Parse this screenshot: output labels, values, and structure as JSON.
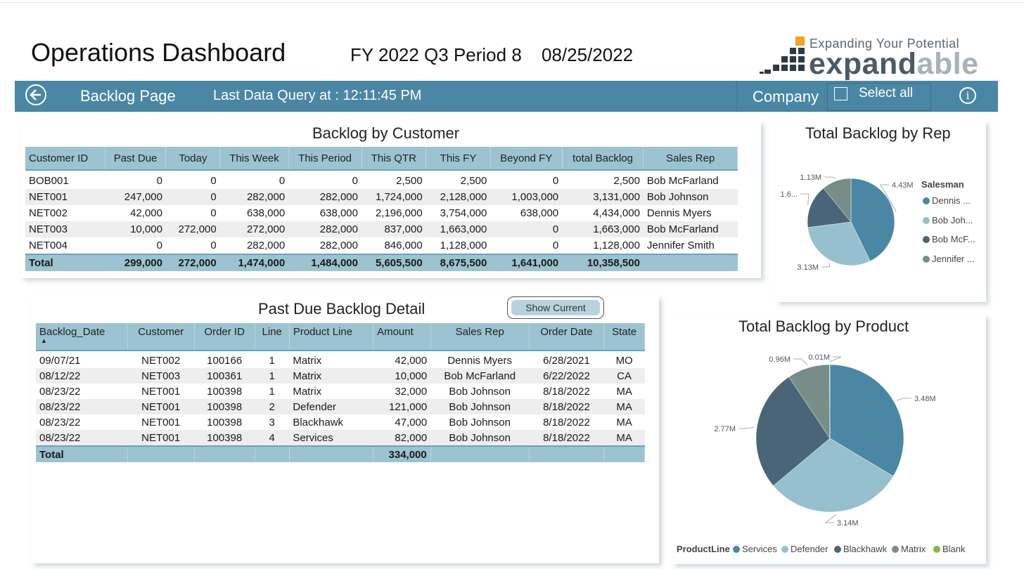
{
  "header": {
    "title": "Operations Dashboard",
    "period": "FY 2022 Q3 Period 8",
    "date": "08/25/2022",
    "logo_tagline": "Expanding Your Potential",
    "logo_word_a": "expand",
    "logo_word_b": "able"
  },
  "navbar": {
    "page_title": "Backlog Page",
    "query_text": "Last Data Query at : 12:11:45 PM",
    "company_label": "Company",
    "select_all": "Select all"
  },
  "customer_table": {
    "title": "Backlog by Customer",
    "columns": [
      "Customer ID",
      "Past Due",
      "Today",
      "This Week",
      "This Period",
      "This QTR",
      "This FY",
      "Beyond FY",
      "total Backlog",
      "Sales Rep"
    ],
    "rows": [
      [
        "BOB001",
        "0",
        "0",
        "0",
        "0",
        "2,500",
        "2,500",
        "0",
        "2,500",
        "Bob McFarland"
      ],
      [
        "NET001",
        "247,000",
        "0",
        "282,000",
        "282,000",
        "1,724,000",
        "2,128,000",
        "1,003,000",
        "3,131,000",
        "Bob Johnson"
      ],
      [
        "NET002",
        "42,000",
        "0",
        "638,000",
        "638,000",
        "2,196,000",
        "3,754,000",
        "638,000",
        "4,434,000",
        "Dennis Myers"
      ],
      [
        "NET003",
        "10,000",
        "272,000",
        "272,000",
        "282,000",
        "837,000",
        "1,663,000",
        "0",
        "1,663,000",
        "Bob McFarland"
      ],
      [
        "NET004",
        "0",
        "0",
        "282,000",
        "282,000",
        "846,000",
        "1,128,000",
        "0",
        "1,128,000",
        "Jennifer Smith"
      ]
    ],
    "total": [
      "Total",
      "299,000",
      "272,000",
      "1,474,000",
      "1,484,000",
      "5,605,500",
      "8,675,500",
      "1,641,000",
      "10,358,500",
      ""
    ]
  },
  "detail_table": {
    "title": "Past Due Backlog Detail",
    "show_current": "Show Current",
    "sort_arrow": "▲",
    "columns": [
      "Backlog_Date",
      "Customer",
      "Order ID",
      "Line",
      "Product Line",
      "Amount",
      "Sales Rep",
      "Order Date",
      "State"
    ],
    "rows": [
      [
        "09/07/21",
        "NET002",
        "100166",
        "1",
        "Matrix",
        "42,000",
        "Dennis Myers",
        "6/28/2021",
        "MO"
      ],
      [
        "08/12/22",
        "NET003",
        "100361",
        "1",
        "Matrix",
        "10,000",
        "Bob McFarland",
        "6/22/2022",
        "CA"
      ],
      [
        "08/23/22",
        "NET001",
        "100398",
        "1",
        "Matrix",
        "32,000",
        "Bob Johnson",
        "8/18/2022",
        "MA"
      ],
      [
        "08/23/22",
        "NET001",
        "100398",
        "2",
        "Defender",
        "121,000",
        "Bob Johnson",
        "8/18/2022",
        "MA"
      ],
      [
        "08/23/22",
        "NET001",
        "100398",
        "3",
        "Blackhawk",
        "47,000",
        "Bob Johnson",
        "8/18/2022",
        "MA"
      ],
      [
        "08/23/22",
        "NET001",
        "100398",
        "4",
        "Services",
        "82,000",
        "Bob Johnson",
        "8/18/2022",
        "MA"
      ]
    ],
    "total": [
      "Total",
      "",
      "",
      "",
      "",
      "334,000",
      "",
      "",
      ""
    ]
  },
  "colors": {
    "nav": "#4a87a5",
    "header_row": "#9cc3d1",
    "c1": "#4a87a5",
    "c2": "#97c0ce",
    "c3": "#4a6577",
    "c4": "#768e87",
    "c5": "#7fba4a"
  },
  "chart_data": [
    {
      "type": "pie",
      "title": "Total Backlog by Rep",
      "legend_title": "Salesman",
      "legend_position": "right",
      "categories": [
        "Dennis ...",
        "Bob Joh...",
        "Bob McF...",
        "Jennifer ..."
      ],
      "values": [
        4.43,
        3.13,
        1.67,
        1.13
      ],
      "data_labels": [
        "4.43M",
        "3.13M",
        "1.6...",
        "1.13M"
      ],
      "colors": [
        "#4a87a5",
        "#97c0ce",
        "#4a6577",
        "#768e87"
      ]
    },
    {
      "type": "pie",
      "title": "Total Backlog by Product",
      "legend_title": "ProductLine",
      "legend_position": "bottom",
      "categories": [
        "Services",
        "Defender",
        "Blackhawk",
        "Matrix",
        "Blank"
      ],
      "values": [
        3.48,
        3.14,
        2.77,
        0.96,
        0.01
      ],
      "data_labels": [
        "3.48M",
        "3.14M",
        "2.77M",
        "0.96M",
        "0.01M"
      ],
      "colors": [
        "#4a87a5",
        "#97c0ce",
        "#4a6577",
        "#768e87",
        "#7fba4a"
      ]
    }
  ]
}
